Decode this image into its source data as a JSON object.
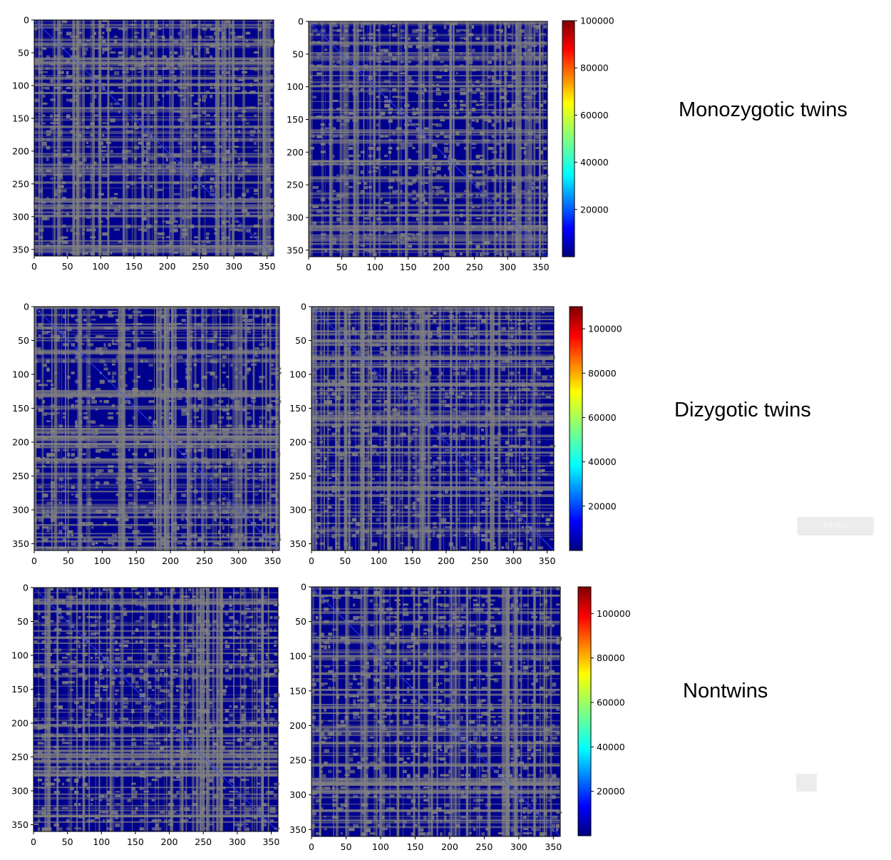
{
  "rows": [
    {
      "label": "Monozygotic twins"
    },
    {
      "label": "Dizygotic twins"
    },
    {
      "label": "Nontwins"
    }
  ],
  "watermark": {
    "text": "TskMgr"
  },
  "colors": {
    "low": "#00008f",
    "gap": "#808080",
    "colormap": [
      "#00007f",
      "#0000ff",
      "#007fff",
      "#00ffff",
      "#7fff7f",
      "#ffff00",
      "#ff7f00",
      "#ff0000",
      "#7f0000"
    ]
  },
  "chart_data": [
    {
      "type": "heatmap",
      "group": "Monozygotic twins",
      "panel": "left",
      "x_ticks": [
        0,
        50,
        100,
        150,
        200,
        250,
        300,
        350
      ],
      "y_ticks": [
        0,
        50,
        100,
        150,
        200,
        250,
        300,
        350
      ],
      "xlim": [
        0,
        360
      ],
      "ylim": [
        0,
        360
      ],
      "cmap": "jet",
      "dominant": "dark blue with grey (missing) cells"
    },
    {
      "type": "heatmap",
      "group": "Monozygotic twins",
      "panel": "right",
      "x_ticks": [
        0,
        50,
        100,
        150,
        200,
        250,
        300,
        350
      ],
      "y_ticks": [
        0,
        50,
        100,
        150,
        200,
        250,
        300,
        350
      ],
      "xlim": [
        0,
        360
      ],
      "ylim": [
        0,
        360
      ],
      "cmap": "jet",
      "colorbar": {
        "ticks": [
          20000,
          40000,
          60000,
          80000,
          100000
        ],
        "range": [
          0,
          100000
        ]
      }
    },
    {
      "type": "heatmap",
      "group": "Dizygotic twins",
      "panel": "left",
      "x_ticks": [
        0,
        50,
        100,
        150,
        200,
        250,
        300,
        350
      ],
      "y_ticks": [
        0,
        50,
        100,
        150,
        200,
        250,
        300,
        350
      ],
      "xlim": [
        0,
        360
      ],
      "ylim": [
        0,
        360
      ],
      "cmap": "jet"
    },
    {
      "type": "heatmap",
      "group": "Dizygotic twins",
      "panel": "right",
      "x_ticks": [
        0,
        50,
        100,
        150,
        200,
        250,
        300,
        350
      ],
      "y_ticks": [
        0,
        50,
        100,
        150,
        200,
        250,
        300,
        350
      ],
      "xlim": [
        0,
        360
      ],
      "ylim": [
        0,
        360
      ],
      "cmap": "jet",
      "colorbar": {
        "ticks": [
          20000,
          40000,
          60000,
          80000,
          100000
        ],
        "range": [
          0,
          110000
        ]
      }
    },
    {
      "type": "heatmap",
      "group": "Nontwins",
      "panel": "left",
      "x_ticks": [
        0,
        50,
        100,
        150,
        200,
        250,
        300,
        350
      ],
      "y_ticks": [
        0,
        50,
        100,
        150,
        200,
        250,
        300,
        350
      ],
      "xlim": [
        0,
        360
      ],
      "ylim": [
        0,
        360
      ],
      "cmap": "jet"
    },
    {
      "type": "heatmap",
      "group": "Nontwins",
      "panel": "right",
      "x_ticks": [
        0,
        50,
        100,
        150,
        200,
        250,
        300,
        350
      ],
      "y_ticks": [
        0,
        50,
        100,
        150,
        200,
        250,
        300,
        350
      ],
      "xlim": [
        0,
        360
      ],
      "ylim": [
        0,
        360
      ],
      "cmap": "jet",
      "colorbar": {
        "ticks": [
          20000,
          40000,
          60000,
          80000,
          100000
        ],
        "range": [
          0,
          112000
        ]
      }
    }
  ]
}
